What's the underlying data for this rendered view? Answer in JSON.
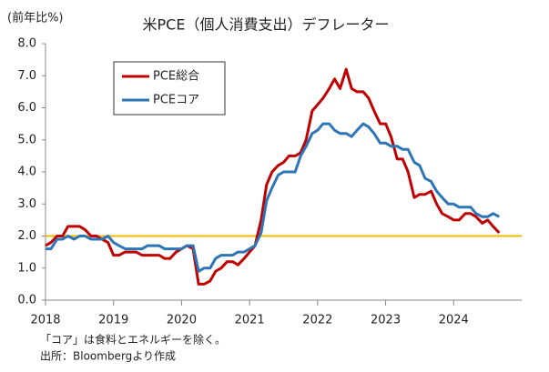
{
  "chart_data": {
    "type": "line",
    "title": "米PCE（個人消費支出）デフレーター",
    "y_label": "(前年比%)",
    "notes": [
      "「コア」は食料とエネルギーを除く。",
      "出所：Bloombergより作成"
    ],
    "x": [
      2018,
      2018.08,
      2018.17,
      2018.25,
      2018.33,
      2018.42,
      2018.5,
      2018.58,
      2018.67,
      2018.75,
      2018.83,
      2018.92,
      2019,
      2019.08,
      2019.17,
      2019.25,
      2019.33,
      2019.42,
      2019.5,
      2019.58,
      2019.67,
      2019.75,
      2019.83,
      2019.92,
      2020,
      2020.08,
      2020.17,
      2020.25,
      2020.33,
      2020.42,
      2020.5,
      2020.58,
      2020.67,
      2020.75,
      2020.83,
      2020.92,
      2021,
      2021.08,
      2021.17,
      2021.25,
      2021.33,
      2021.42,
      2021.5,
      2021.58,
      2021.67,
      2021.75,
      2021.83,
      2021.92,
      2022,
      2022.08,
      2022.17,
      2022.25,
      2022.33,
      2022.42,
      2022.5,
      2022.58,
      2022.67,
      2022.75,
      2022.83,
      2022.92,
      2023,
      2023.08,
      2023.17,
      2023.25,
      2023.33,
      2023.42,
      2023.5,
      2023.58,
      2023.67,
      2023.75,
      2023.83,
      2023.92,
      2024,
      2024.08,
      2024.17,
      2024.25,
      2024.33,
      2024.42,
      2024.5,
      2024.58,
      2024.67
    ],
    "series": [
      {
        "name": "PCE総合",
        "color": "#c00000",
        "values": [
          1.7,
          1.8,
          2.0,
          2.0,
          2.3,
          2.3,
          2.3,
          2.2,
          2.0,
          2.0,
          1.9,
          1.8,
          1.4,
          1.4,
          1.5,
          1.5,
          1.5,
          1.4,
          1.4,
          1.4,
          1.4,
          1.3,
          1.3,
          1.5,
          1.6,
          1.7,
          1.6,
          0.5,
          0.5,
          0.6,
          0.9,
          1.0,
          1.2,
          1.2,
          1.1,
          1.3,
          1.5,
          1.7,
          2.5,
          3.6,
          4.0,
          4.2,
          4.3,
          4.5,
          4.5,
          4.6,
          5.0,
          5.9,
          6.1,
          6.3,
          6.6,
          6.9,
          6.6,
          7.2,
          6.6,
          6.5,
          6.5,
          6.3,
          5.9,
          5.5,
          5.5,
          5.1,
          4.4,
          4.4,
          4.0,
          3.2,
          3.3,
          3.3,
          3.4,
          3.0,
          2.7,
          2.6,
          2.5,
          2.5,
          2.7,
          2.7,
          2.6,
          2.4,
          2.5,
          2.3,
          2.1
        ]
      },
      {
        "name": "PCEコア",
        "color": "#2e75b6",
        "values": [
          1.6,
          1.6,
          1.9,
          1.9,
          2.0,
          1.9,
          2.0,
          2.0,
          1.9,
          1.9,
          1.9,
          2.0,
          1.8,
          1.7,
          1.6,
          1.6,
          1.6,
          1.6,
          1.7,
          1.7,
          1.7,
          1.6,
          1.6,
          1.6,
          1.6,
          1.7,
          1.7,
          0.9,
          1.0,
          1.0,
          1.3,
          1.4,
          1.4,
          1.4,
          1.5,
          1.5,
          1.6,
          1.7,
          2.1,
          3.1,
          3.5,
          3.9,
          4.0,
          4.0,
          4.0,
          4.5,
          4.8,
          5.2,
          5.3,
          5.5,
          5.5,
          5.3,
          5.2,
          5.2,
          5.1,
          5.3,
          5.5,
          5.4,
          5.2,
          4.9,
          4.9,
          4.8,
          4.8,
          4.7,
          4.7,
          4.3,
          4.2,
          3.8,
          3.7,
          3.4,
          3.2,
          3.0,
          3.0,
          2.9,
          2.9,
          2.9,
          2.7,
          2.6,
          2.6,
          2.7,
          2.6
        ]
      }
    ],
    "reference_line": {
      "value": 2,
      "color": "#f5b800"
    },
    "xlim": [
      2018,
      2025
    ],
    "xticks": [
      2018,
      2019,
      2020,
      2021,
      2022,
      2023,
      2024
    ],
    "ylim": [
      0,
      8
    ],
    "yticks": [
      {
        "value": 0,
        "label": "0.0"
      },
      {
        "value": 1,
        "label": "1.0"
      },
      {
        "value": 2,
        "label": "2.0"
      },
      {
        "value": 3,
        "label": "3.0"
      },
      {
        "value": 4,
        "label": "4.0"
      },
      {
        "value": 5,
        "label": "5.0"
      },
      {
        "value": 6,
        "label": "6.0"
      },
      {
        "value": 7,
        "label": "7.0"
      },
      {
        "value": 8,
        "label": "8.0"
      }
    ],
    "grid": false,
    "legend": "upper left"
  }
}
